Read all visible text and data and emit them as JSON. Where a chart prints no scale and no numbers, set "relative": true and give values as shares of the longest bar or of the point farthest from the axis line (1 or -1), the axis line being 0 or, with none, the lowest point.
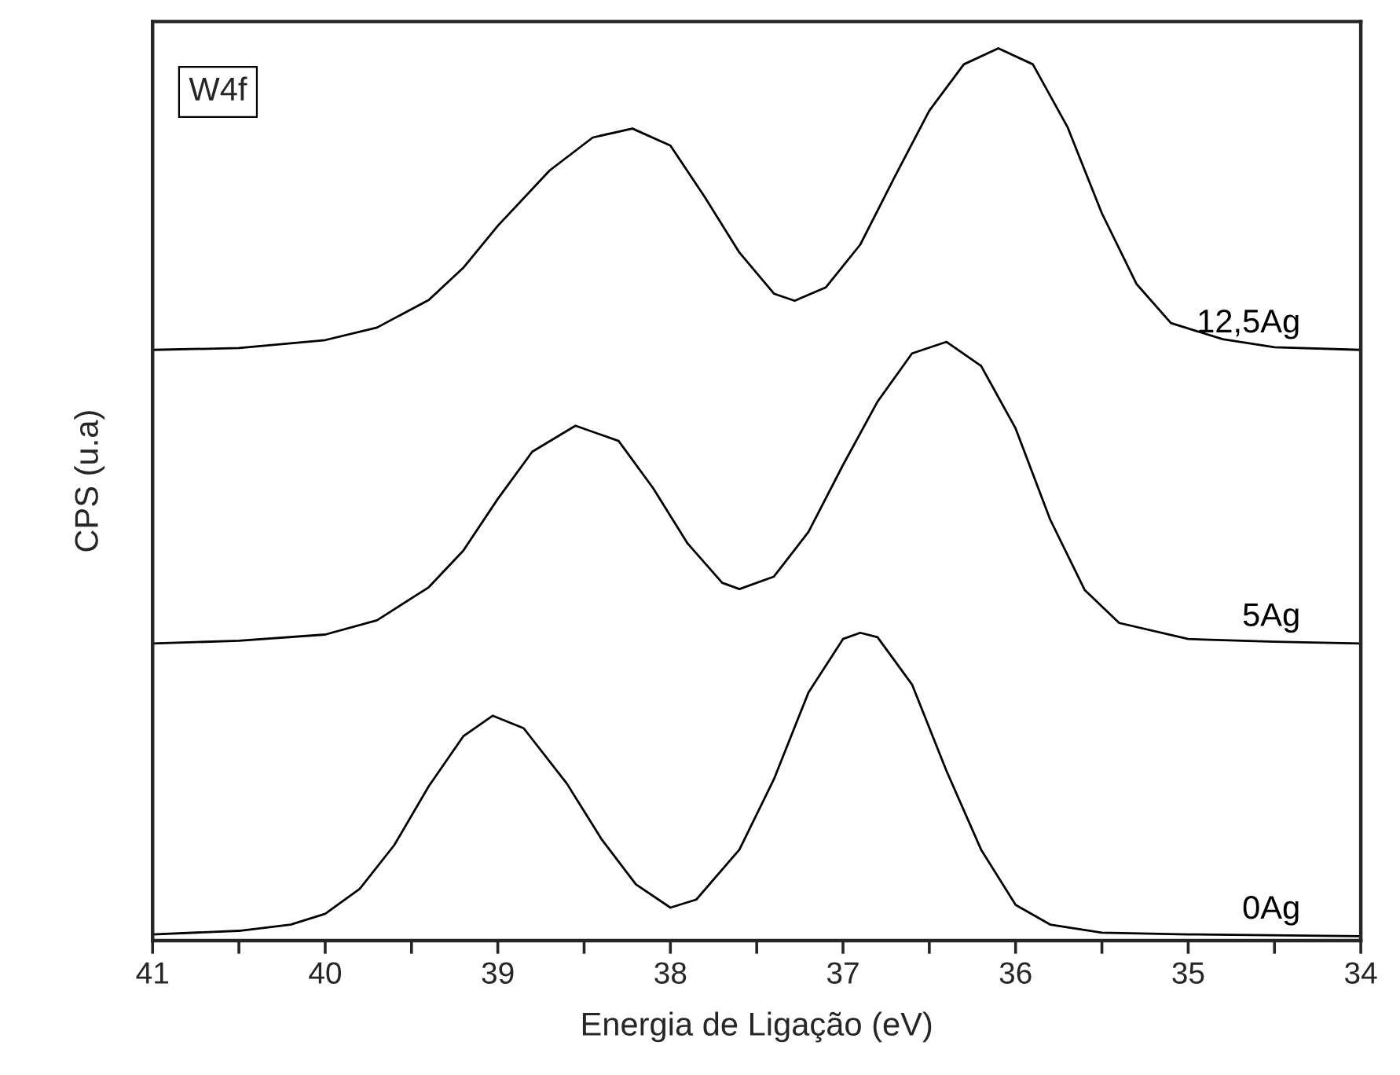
{
  "chart_data": {
    "type": "line",
    "relative": true,
    "xlabel": "Energia de Ligação (eV)",
    "ylabel": "CPS (u.a)",
    "annotations": [
      "W4f"
    ],
    "xlim": [
      41,
      34
    ],
    "xticks": [
      41,
      {
        "value": 40.5,
        "label": null
      },
      40,
      {
        "value": 39.5,
        "label": null
      },
      39,
      {
        "value": 38.5,
        "label": null
      },
      38,
      {
        "value": 37.5,
        "label": null
      },
      37,
      {
        "value": 36.5,
        "label": null
      },
      36,
      {
        "value": 35.5,
        "label": null
      },
      35,
      {
        "value": 34.5,
        "label": null
      },
      34
    ],
    "grid": false,
    "legend": false,
    "marker": "none",
    "line_style": "solid",
    "series": [
      {
        "name": "0Ag",
        "color": "#000000",
        "x": [
          41,
          40.5,
          40.2,
          40.0,
          39.8,
          39.6,
          39.4,
          39.2,
          39.03,
          38.85,
          38.6,
          38.4,
          38.2,
          38.0,
          37.85,
          37.6,
          37.4,
          37.2,
          37.0,
          36.9,
          36.8,
          36.6,
          36.4,
          36.2,
          36.0,
          35.8,
          35.5,
          35.0,
          34
        ],
        "values": [
          0.007,
          0.011,
          0.018,
          0.03,
          0.058,
          0.107,
          0.173,
          0.229,
          0.252,
          0.238,
          0.176,
          0.114,
          0.063,
          0.037,
          0.046,
          0.102,
          0.181,
          0.278,
          0.338,
          0.345,
          0.34,
          0.287,
          0.19,
          0.102,
          0.04,
          0.018,
          0.009,
          0.007,
          0.005
        ]
      },
      {
        "name": "5Ag",
        "color": "#000000",
        "x": [
          41,
          40.5,
          40.0,
          39.7,
          39.4,
          39.2,
          39.0,
          38.8,
          38.55,
          38.3,
          38.1,
          37.9,
          37.7,
          37.6,
          37.4,
          37.2,
          37.0,
          36.8,
          36.6,
          36.4,
          36.2,
          36.0,
          35.8,
          35.6,
          35.4,
          35.0,
          34.5,
          34
        ],
        "values": [
          0.333,
          0.336,
          0.343,
          0.359,
          0.396,
          0.437,
          0.495,
          0.548,
          0.577,
          0.56,
          0.507,
          0.445,
          0.401,
          0.394,
          0.408,
          0.458,
          0.533,
          0.604,
          0.658,
          0.671,
          0.644,
          0.574,
          0.472,
          0.393,
          0.356,
          0.338,
          0.335,
          0.333
        ]
      },
      {
        "name": "12,5Ag",
        "color": "#000000",
        "x": [
          41,
          40.5,
          40.0,
          39.7,
          39.4,
          39.2,
          39.0,
          38.7,
          38.45,
          38.22,
          38.0,
          37.8,
          37.6,
          37.4,
          37.28,
          37.1,
          36.9,
          36.7,
          36.5,
          36.3,
          36.1,
          35.9,
          35.7,
          35.5,
          35.3,
          35.1,
          34.8,
          34.5,
          34
        ],
        "values": [
          0.662,
          0.664,
          0.673,
          0.687,
          0.718,
          0.754,
          0.801,
          0.863,
          0.9,
          0.91,
          0.891,
          0.833,
          0.771,
          0.725,
          0.717,
          0.732,
          0.78,
          0.856,
          0.93,
          0.982,
          1.0,
          0.982,
          0.912,
          0.815,
          0.736,
          0.692,
          0.674,
          0.665,
          0.662
        ]
      }
    ]
  }
}
